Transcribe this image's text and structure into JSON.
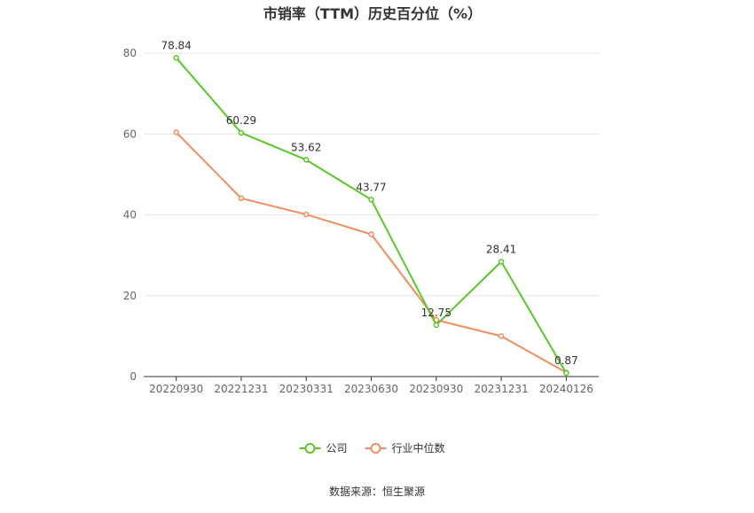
{
  "chart_data": {
    "type": "line",
    "title": "市销率（TTM）历史百分位（%）",
    "xlabel": "",
    "ylabel": "",
    "categories": [
      "20220930",
      "20221231",
      "20230331",
      "20230630",
      "20230930",
      "20231231",
      "20240126"
    ],
    "ylim": [
      0,
      80
    ],
    "yticks": [
      0,
      20,
      40,
      60,
      80
    ],
    "grid": true,
    "legend_position": "bottom-center",
    "series": [
      {
        "name": "公司",
        "color": "#5ac72b",
        "values": [
          78.84,
          60.29,
          53.62,
          43.77,
          12.75,
          28.41,
          0.87
        ],
        "data_labels": [
          "78.84",
          "60.29",
          "53.62",
          "43.77",
          "12.75",
          "28.41",
          "0.87"
        ]
      },
      {
        "name": "行业中位数",
        "color": "#f28c5e",
        "values": [
          60.4,
          44.1,
          40.1,
          35.2,
          14.0,
          10.0,
          1.0
        ]
      }
    ]
  },
  "source": "数据来源：恒生聚源"
}
